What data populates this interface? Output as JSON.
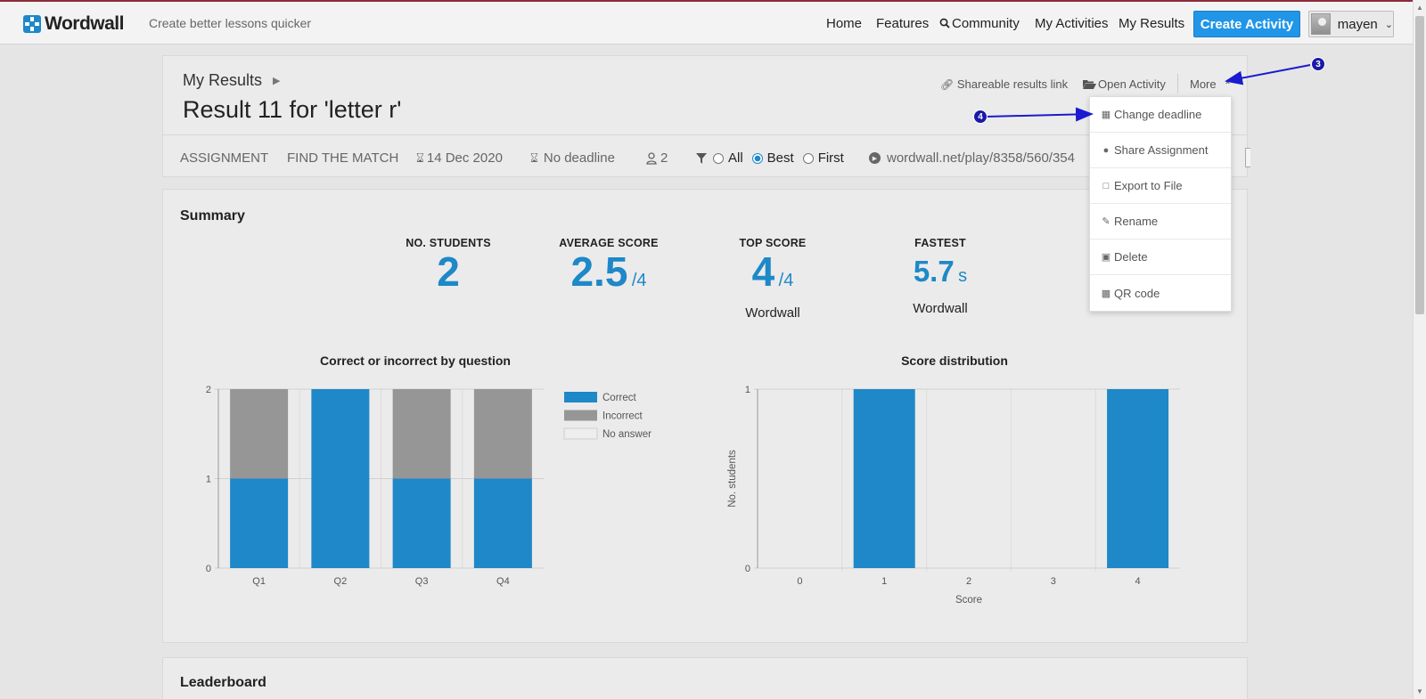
{
  "app": {
    "name": "Wordwall",
    "tagline": "Create better lessons quicker"
  },
  "nav": {
    "home": "Home",
    "features": "Features",
    "community": "Community",
    "my_activities": "My Activities",
    "my_results": "My Results",
    "create_activity": "Create Activity",
    "user": "mayen"
  },
  "header": {
    "breadcrumb": "My Results",
    "title": "Result 11 for 'letter r'",
    "actions": {
      "share_link": "Shareable results link",
      "open_activity": "Open Activity",
      "more": "More"
    },
    "meta": {
      "type": "ASSIGNMENT",
      "template": "FIND THE MATCH",
      "date": "14 Dec 2020",
      "deadline": "No deadline",
      "students": "2",
      "filter_all": "All",
      "filter_best": "Best",
      "filter_first": "First",
      "selected_filter": "Best",
      "url": "wordwall.net/play/8358/560/354"
    }
  },
  "more_menu": {
    "items": [
      {
        "label": "Change deadline",
        "icon": "calendar-icon"
      },
      {
        "label": "Share Assignment",
        "icon": "user-icon"
      },
      {
        "label": "Export to File",
        "icon": "file-excel-icon"
      },
      {
        "label": "Rename",
        "icon": "edit-icon"
      },
      {
        "label": "Delete",
        "icon": "trash-icon"
      },
      {
        "label": "QR code",
        "icon": "qrcode-icon"
      }
    ]
  },
  "annotations": {
    "a3": "3",
    "a4": "4"
  },
  "summary": {
    "title": "Summary",
    "stats": {
      "students": {
        "label": "NO. STUDENTS",
        "value": "2"
      },
      "average": {
        "label": "AVERAGE SCORE",
        "value": "2.5",
        "unit": "/4"
      },
      "top": {
        "label": "TOP SCORE",
        "value": "4",
        "unit": "/4",
        "sub": "Wordwall"
      },
      "fastest": {
        "label": "FASTEST",
        "value": "5.7",
        "unit": "s",
        "sub": "Wordwall"
      }
    }
  },
  "leaderboard": {
    "title": "Leaderboard"
  },
  "colors": {
    "correct": "#1e88c8",
    "incorrect": "#969696",
    "no_answer": "#eeeeee",
    "accent": "#2196e8"
  },
  "chart_data": [
    {
      "type": "bar",
      "stacked": true,
      "title": "Correct or incorrect by question",
      "categories": [
        "Q1",
        "Q2",
        "Q3",
        "Q4"
      ],
      "series": [
        {
          "name": "Correct",
          "values": [
            1,
            2,
            1,
            1
          ]
        },
        {
          "name": "Incorrect",
          "values": [
            1,
            0,
            1,
            1
          ]
        },
        {
          "name": "No answer",
          "values": [
            0,
            0,
            0,
            0
          ]
        }
      ],
      "ylim": [
        0,
        2
      ],
      "yticks": [
        "0",
        "1",
        "2"
      ],
      "legend": "right"
    },
    {
      "type": "bar",
      "title": "Score distribution",
      "categories": [
        "0",
        "1",
        "2",
        "3",
        "4"
      ],
      "values": [
        0,
        1,
        0,
        0,
        1
      ],
      "xlabel": "Score",
      "ylabel": "No. students",
      "ylim": [
        0,
        1
      ],
      "yticks": [
        "0",
        "1"
      ]
    }
  ]
}
